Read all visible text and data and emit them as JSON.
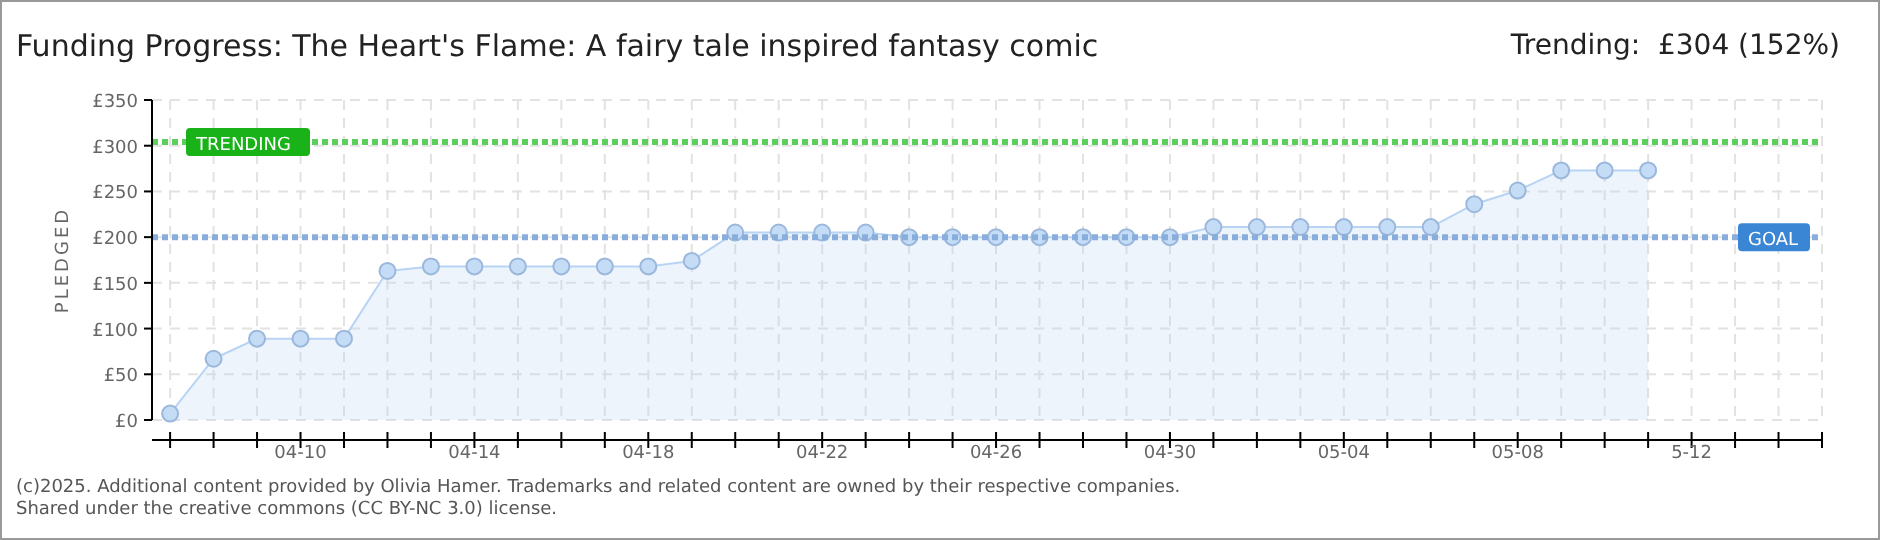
{
  "chart_data": {
    "type": "area",
    "title": "Funding Progress: The Heart's Flame: A fairy tale inspired fantasy comic",
    "subtitle": "Trending:  £304 (152%)",
    "ylabel": "PLEDGED",
    "annotations": [
      "(c)2025. Additional content provided by Olivia Hamer. Trademarks and related content are owned by their respective companies.",
      "Shared under the creative commons (CC BY-NC 3.0) license."
    ],
    "x": [
      "2025-04-07",
      "2025-04-08",
      "2025-04-09",
      "2025-04-10",
      "2025-04-11",
      "2025-04-12",
      "2025-04-13",
      "2025-04-14",
      "2025-04-15",
      "2025-04-16",
      "2025-04-17",
      "2025-04-18",
      "2025-04-19",
      "2025-04-20",
      "2025-04-21",
      "2025-04-22",
      "2025-04-23",
      "2025-04-24",
      "2025-04-25",
      "2025-04-26",
      "2025-04-27",
      "2025-04-28",
      "2025-04-29",
      "2025-04-30",
      "2025-05-01",
      "2025-05-02",
      "2025-05-03",
      "2025-05-04",
      "2025-05-05",
      "2025-05-06",
      "2025-05-07",
      "2025-05-08",
      "2025-05-09",
      "2025-05-10",
      "2025-05-11"
    ],
    "series": [
      {
        "color": "#b8d4f4",
        "values": [
          7,
          67,
          89,
          89,
          89,
          163,
          168,
          168,
          168,
          168,
          168,
          168,
          174,
          205,
          205,
          205,
          205,
          200,
          200,
          200,
          200,
          200,
          200,
          200,
          211,
          211,
          211,
          211,
          211,
          211,
          236,
          251,
          273,
          273,
          273
        ]
      }
    ],
    "marker": "circle",
    "grid": true,
    "xlim": [
      "2025-04-06T14:00",
      "2025-05-15"
    ],
    "xticks": [
      {
        "value": "2025-04-07",
        "label": null
      },
      {
        "value": "2025-04-08",
        "label": null
      },
      {
        "value": "2025-04-09",
        "label": null
      },
      {
        "value": "2025-04-10",
        "label": "04-10"
      },
      {
        "value": "2025-04-11",
        "label": null
      },
      {
        "value": "2025-04-12",
        "label": null
      },
      {
        "value": "2025-04-13",
        "label": null
      },
      {
        "value": "2025-04-14",
        "label": "04-14"
      },
      {
        "value": "2025-04-15",
        "label": null
      },
      {
        "value": "2025-04-16",
        "label": null
      },
      {
        "value": "2025-04-17",
        "label": null
      },
      {
        "value": "2025-04-18",
        "label": "04-18"
      },
      {
        "value": "2025-04-19",
        "label": null
      },
      {
        "value": "2025-04-20",
        "label": null
      },
      {
        "value": "2025-04-21",
        "label": null
      },
      {
        "value": "2025-04-22",
        "label": "04-22"
      },
      {
        "value": "2025-04-23",
        "label": null
      },
      {
        "value": "2025-04-24",
        "label": null
      },
      {
        "value": "2025-04-25",
        "label": null
      },
      {
        "value": "2025-04-26",
        "label": "04-26"
      },
      {
        "value": "2025-04-27",
        "label": null
      },
      {
        "value": "2025-04-28",
        "label": null
      },
      {
        "value": "2025-04-29",
        "label": null
      },
      {
        "value": "2025-04-30",
        "label": "04-30"
      },
      {
        "value": "2025-05-01",
        "label": null
      },
      {
        "value": "2025-05-02",
        "label": null
      },
      {
        "value": "2025-05-03",
        "label": null
      },
      {
        "value": "2025-05-04",
        "label": "05-04"
      },
      {
        "value": "2025-05-05",
        "label": null
      },
      {
        "value": "2025-05-06",
        "label": null
      },
      {
        "value": "2025-05-07",
        "label": null
      },
      {
        "value": "2025-05-08",
        "label": "05-08"
      },
      {
        "value": "2025-05-09",
        "label": null
      },
      {
        "value": "2025-05-10",
        "label": null
      },
      {
        "value": "2025-05-11",
        "label": null
      },
      {
        "value": "2025-05-12",
        "label": "5-12"
      },
      {
        "value": "2025-05-13",
        "label": null
      },
      {
        "value": "2025-05-14",
        "label": null
      },
      {
        "value": "2025-05-15",
        "label": null
      }
    ],
    "ylim": [
      0,
      350
    ],
    "yticks": [
      {
        "value": 0,
        "label": "£0"
      },
      {
        "value": 50,
        "label": "£50"
      },
      {
        "value": 100,
        "label": "£100"
      },
      {
        "value": 150,
        "label": "£150"
      },
      {
        "value": 200,
        "label": "£200"
      },
      {
        "value": 250,
        "label": "£250"
      },
      {
        "value": 300,
        "label": "£300"
      },
      {
        "value": 350,
        "label": "£350"
      }
    ],
    "ref_lines": [
      {
        "axis": "y",
        "value": 304,
        "label": "TRENDING",
        "color": "#5ccf5c",
        "line_style": "dotted"
      },
      {
        "axis": "y",
        "value": 200,
        "label": "GOAL",
        "color": "#8aaedc",
        "line_style": "dotted"
      }
    ]
  }
}
